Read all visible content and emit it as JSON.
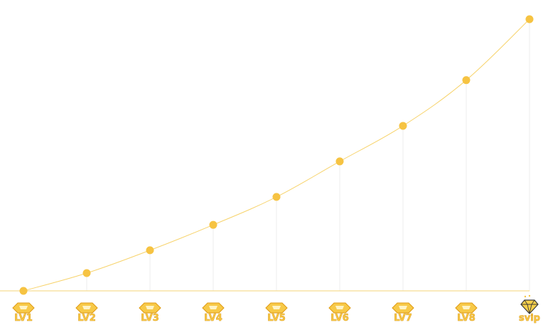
{
  "chart_data": {
    "type": "line",
    "categories": [
      "LV1",
      "LV2",
      "LV3",
      "LV4",
      "LV5",
      "LV6",
      "LV7",
      "LV8",
      "svip"
    ],
    "series": [
      {
        "values": [
          0,
          7,
          16,
          26,
          37,
          51,
          65,
          83,
          107
        ]
      }
    ],
    "ylim": [
      0,
      110
    ],
    "grid": "vertical drop lines at each level",
    "colors": {
      "line": "#f7d36b",
      "point": "#f6c342",
      "baseline": "#f5d57a",
      "dropline": "#eeeeee"
    },
    "icons": [
      "gem-icon",
      "gem-icon",
      "gem-icon",
      "gem-icon",
      "gem-icon",
      "gem-icon",
      "gem-icon",
      "gem-icon",
      "diamond-icon"
    ]
  }
}
